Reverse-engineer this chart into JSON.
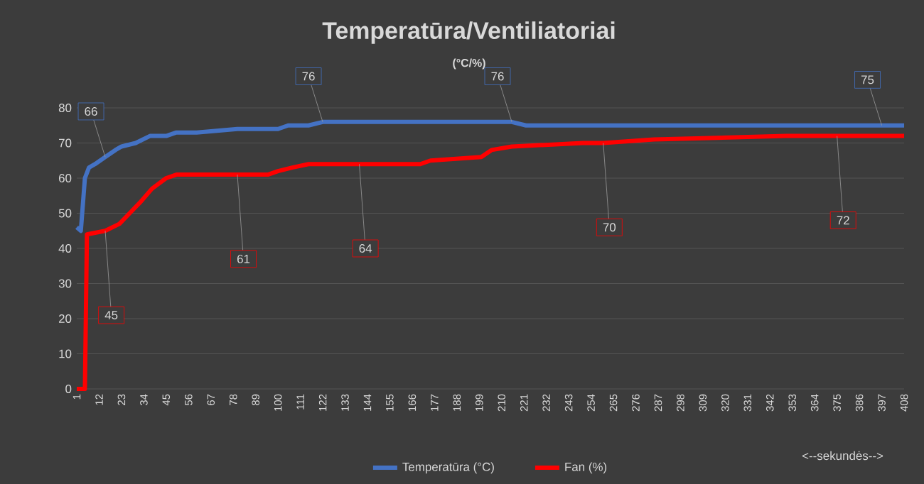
{
  "chart_data": {
    "type": "line",
    "title": "Temperatūra/Ventiliatoriai",
    "subtitle": "(°C/%)",
    "annotations": [
      "<--sekundės-->"
    ],
    "xlim": [
      1,
      408
    ],
    "xticks": [
      1,
      12,
      23,
      34,
      45,
      56,
      67,
      78,
      89,
      100,
      111,
      122,
      133,
      144,
      155,
      166,
      177,
      188,
      199,
      210,
      221,
      232,
      243,
      254,
      265,
      276,
      287,
      298,
      309,
      320,
      331,
      342,
      353,
      364,
      375,
      386,
      397,
      408
    ],
    "ylim": [
      0,
      80
    ],
    "yticks": [
      0,
      10,
      20,
      30,
      40,
      50,
      60,
      70,
      80
    ],
    "grid": "y",
    "legend": "bottom",
    "series": [
      {
        "name": "Temperatūra (°C)",
        "color": "#4472c4",
        "x": [
          1,
          3,
          5,
          7,
          10,
          15,
          20,
          23,
          30,
          37,
          45,
          50,
          60,
          80,
          100,
          105,
          115,
          122,
          130,
          215,
          222,
          230,
          300,
          397,
          408
        ],
        "values": [
          46,
          45,
          60,
          63,
          64,
          66,
          68,
          69,
          70,
          72,
          72,
          73,
          73,
          74,
          74,
          75,
          75,
          76,
          76,
          76,
          75,
          75,
          75,
          75,
          75
        ],
        "value_labels": [
          null,
          null,
          null,
          null,
          null,
          "66",
          null,
          null,
          null,
          null,
          null,
          null,
          null,
          null,
          null,
          null,
          null,
          "76",
          null,
          "76",
          null,
          null,
          null,
          "75",
          null
        ]
      },
      {
        "name": "Fan (%)",
        "color": "#ff0000",
        "x": [
          1,
          5,
          6,
          15,
          22,
          27,
          32,
          38,
          45,
          50,
          80,
          95,
          100,
          107,
          115,
          140,
          170,
          175,
          200,
          205,
          215,
          250,
          260,
          285,
          350,
          375,
          408
        ],
        "values": [
          0,
          0,
          44,
          45,
          47,
          50,
          53,
          57,
          60,
          61,
          61,
          61,
          62,
          63,
          64,
          64,
          64,
          65,
          66,
          68,
          69,
          70,
          70,
          71,
          72,
          72,
          72
        ],
        "value_labels": [
          null,
          null,
          null,
          "45",
          null,
          null,
          null,
          null,
          null,
          null,
          "61",
          null,
          null,
          null,
          null,
          "64",
          null,
          null,
          null,
          null,
          null,
          null,
          "70",
          null,
          null,
          "72",
          null
        ]
      }
    ]
  }
}
